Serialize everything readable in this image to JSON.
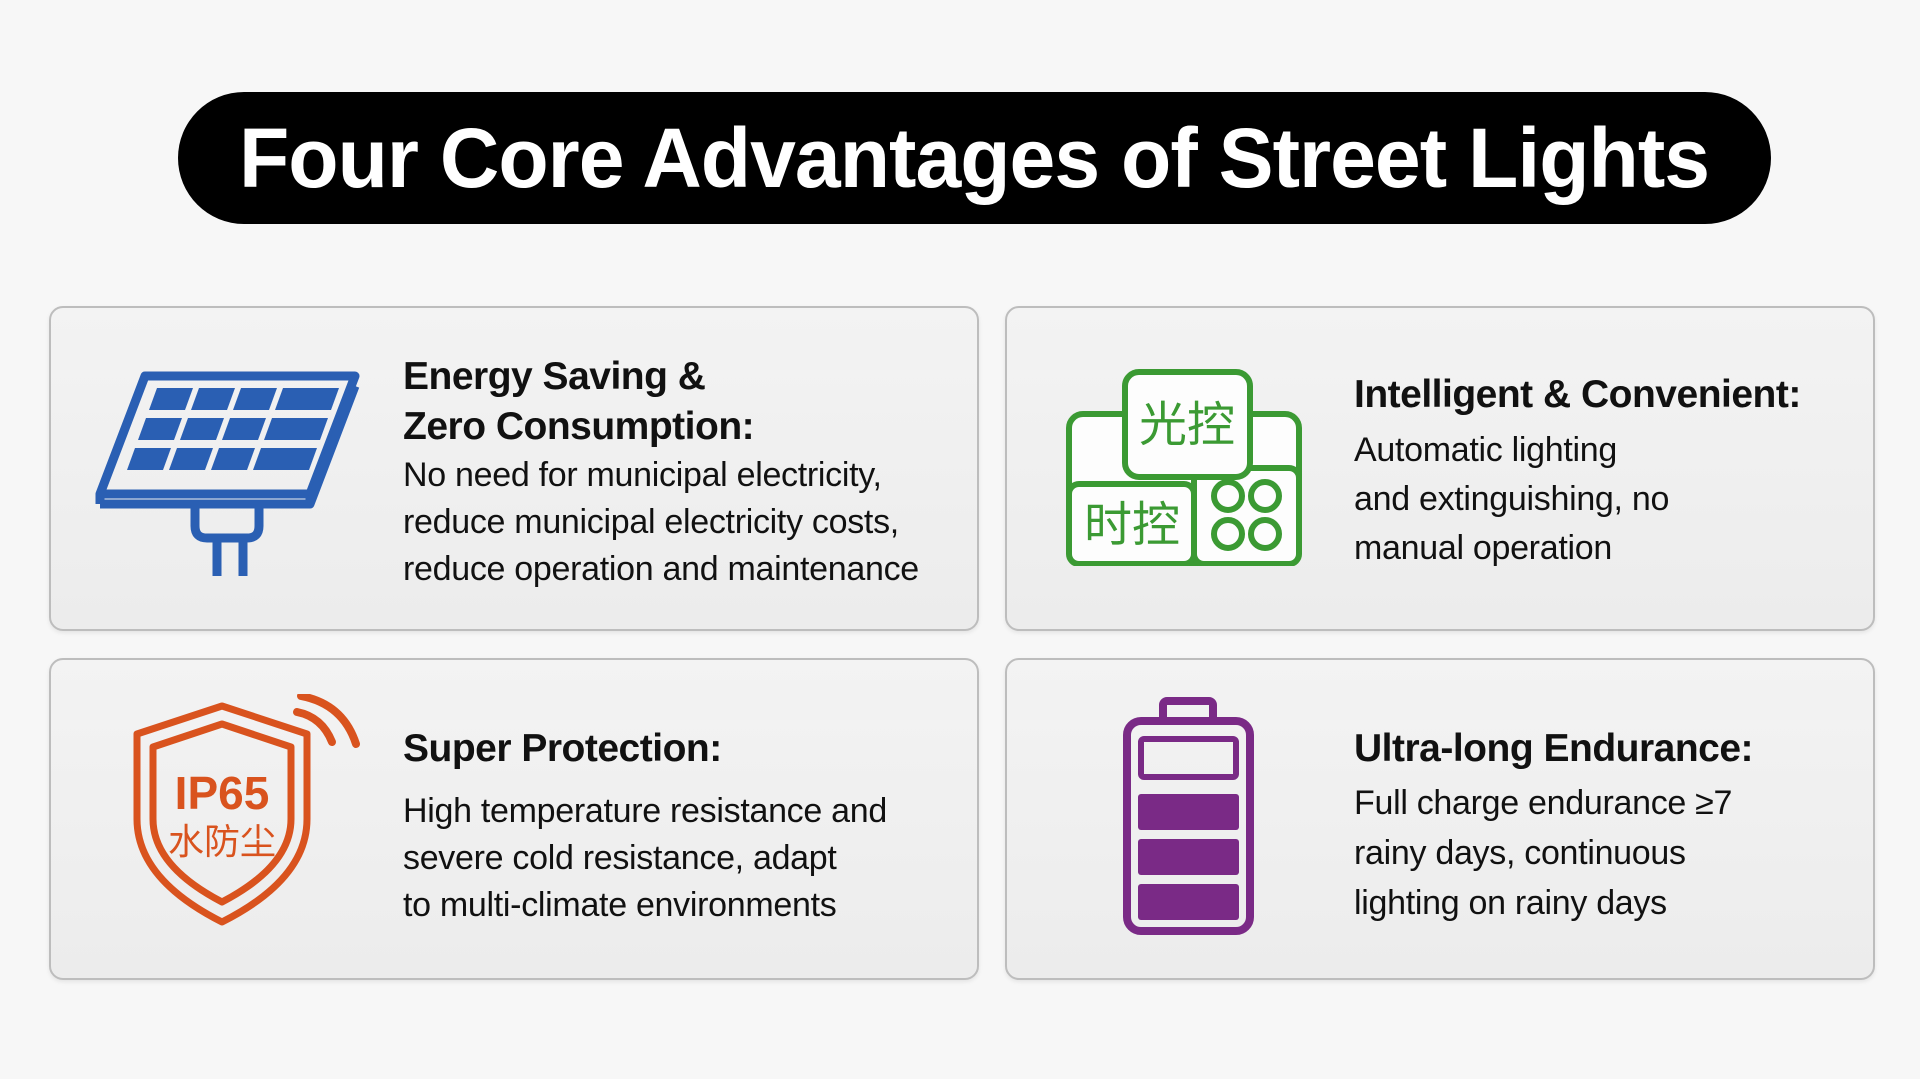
{
  "title": "Four Core Advantages of Street Lights",
  "colors": {
    "solar": "#2a5fb3",
    "smart": "#3b9a33",
    "shield": "#d9531e",
    "battery": "#7a2a86"
  },
  "cards": [
    {
      "icon": "solar-panel-icon",
      "title_lines": [
        "Energy Saving &",
        "Zero Consumption:"
      ],
      "body_lines": [
        "No need for municipal electricity,",
        "reduce municipal electricity costs,",
        "reduce operation and maintenance"
      ]
    },
    {
      "icon": "smart-control-icon",
      "icon_labels": [
        "光控",
        "时控"
      ],
      "title_lines": [
        "Intelligent & Convenient:"
      ],
      "body_lines": [
        "Automatic lighting",
        "and extinguishing, no",
        "manual operation"
      ]
    },
    {
      "icon": "ip65-shield-icon",
      "icon_labels": [
        "IP65",
        "水防尘"
      ],
      "title_lines": [
        "Super Protection:"
      ],
      "body_lines": [
        "High temperature resistance and",
        "severe cold resistance, adapt",
        "to multi-climate environments"
      ]
    },
    {
      "icon": "battery-icon",
      "title_lines": [
        "Ultra-long Endurance:"
      ],
      "body_lines": [
        "Full charge endurance ≥7",
        "rainy days, continuous",
        "lighting on rainy days"
      ]
    }
  ]
}
